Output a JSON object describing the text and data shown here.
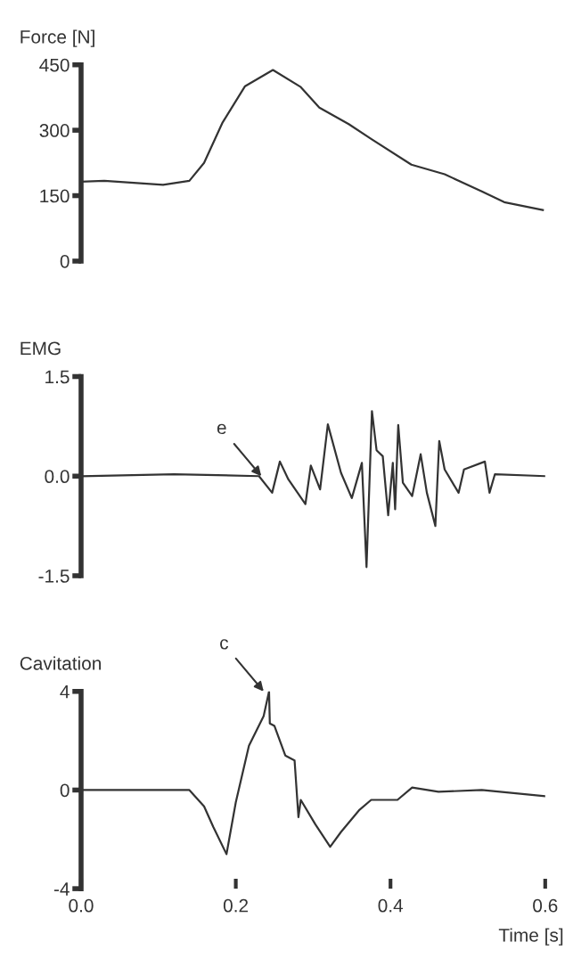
{
  "chart_data": [
    {
      "type": "line",
      "ylabel": "Force [N]",
      "xlim": [
        0,
        0.6
      ],
      "ylim": [
        0,
        450
      ],
      "yticks": [
        0,
        150,
        300,
        450
      ],
      "tick_labels": "y",
      "grid": false,
      "marker": "none",
      "line_style": "solid",
      "series": [
        {
          "color": "#333333",
          "x": [
            0,
            0.03,
            0.106,
            0.14,
            0.159,
            0.183,
            0.212,
            0.248,
            0.284,
            0.308,
            0.346,
            0.375,
            0.427,
            0.47,
            0.518,
            0.547,
            0.597
          ],
          "values": [
            182,
            184,
            175,
            184,
            225,
            318,
            401,
            438,
            399,
            352,
            314,
            280,
            221,
            199,
            160,
            135,
            117
          ]
        }
      ]
    },
    {
      "type": "line",
      "ylabel": "EMG",
      "xlim": [
        0,
        0.6
      ],
      "ylim": [
        -1.5,
        1.5
      ],
      "yticks": [
        {
          "value": -1.5,
          "label": "-1.5"
        },
        {
          "value": 0,
          "label": "0.0"
        },
        {
          "value": 1.5,
          "label": "1.5"
        }
      ],
      "tick_labels": "y",
      "grid": false,
      "marker": "none",
      "line_style": "solid",
      "annotations": [
        {
          "text": "e",
          "x": 0.233,
          "y": 0
        }
      ],
      "series": [
        {
          "color": "#333333",
          "x": [
            0,
            0.12,
            0.23,
            0.247,
            0.257,
            0.268,
            0.29,
            0.297,
            0.309,
            0.319,
            0.336,
            0.35,
            0.363,
            0.369,
            0.376,
            0.382,
            0.39,
            0.397,
            0.403,
            0.406,
            0.41,
            0.416,
            0.428,
            0.439,
            0.447,
            0.458,
            0.463,
            0.47,
            0.488,
            0.495,
            0.522,
            0.528,
            0.535,
            0.6
          ],
          "values": [
            0,
            0.03,
            0,
            -0.25,
            0.22,
            -0.05,
            -0.42,
            0.16,
            -0.2,
            0.78,
            0.05,
            -0.33,
            0.2,
            -1.37,
            0.98,
            0.39,
            0.3,
            -0.59,
            0.2,
            -0.5,
            0.77,
            -0.1,
            -0.3,
            0.33,
            -0.25,
            -0.75,
            0.53,
            0.1,
            -0.25,
            0.1,
            0.22,
            -0.25,
            0.03,
            0
          ]
        }
      ]
    },
    {
      "type": "line",
      "ylabel": "Cavitation",
      "xlabel": "Time [s]",
      "xlim": [
        0,
        0.6
      ],
      "ylim": [
        -4,
        4
      ],
      "yticks": [
        -4,
        0,
        4
      ],
      "xticks": [
        {
          "value": 0,
          "label": "0.0"
        },
        {
          "value": 0.2,
          "label": "0.2"
        },
        {
          "value": 0.4,
          "label": "0.4"
        },
        {
          "value": 0.6,
          "label": "0.6"
        }
      ],
      "grid": false,
      "marker": "none",
      "line_style": "solid",
      "annotations": [
        {
          "text": "c",
          "x": 0.236,
          "y": 4
        }
      ],
      "series": [
        {
          "color": "#333333",
          "x": [
            0,
            0.14,
            0.159,
            0.171,
            0.188,
            0.2,
            0.217,
            0.236,
            0.243,
            0.244,
            0.25,
            0.264,
            0.276,
            0.281,
            0.284,
            0.303,
            0.322,
            0.336,
            0.36,
            0.375,
            0.409,
            0.428,
            0.462,
            0.518,
            0.6
          ],
          "values": [
            0,
            0,
            -0.66,
            -1.5,
            -2.6,
            -0.5,
            1.8,
            3.0,
            4.0,
            2.7,
            2.6,
            1.4,
            1.2,
            -1.1,
            -0.4,
            -1.4,
            -2.3,
            -1.7,
            -0.8,
            -0.4,
            -0.4,
            0.1,
            -0.07,
            0,
            -0.25
          ]
        }
      ]
    }
  ]
}
